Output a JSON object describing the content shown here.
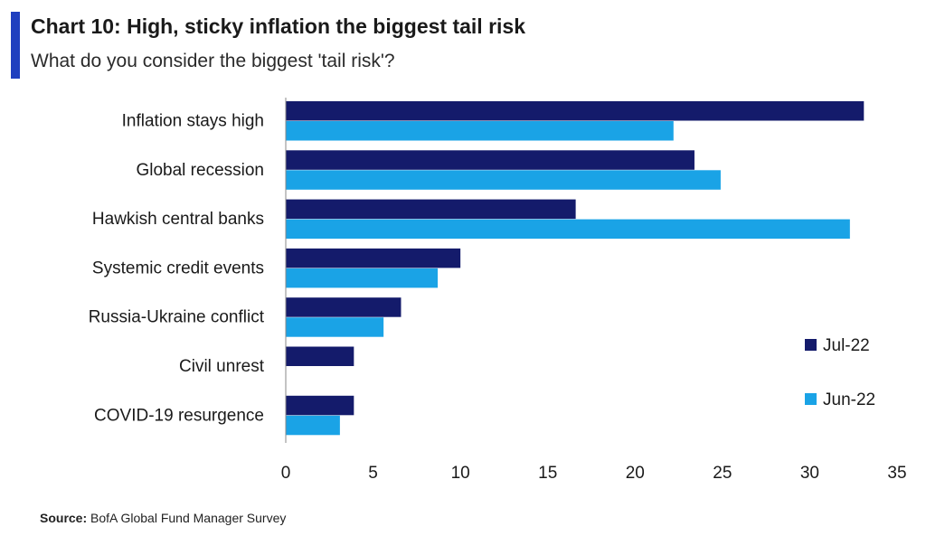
{
  "header": {
    "title": "Chart 10: High, sticky inflation the biggest tail risk",
    "subtitle": "What do you consider the biggest 'tail risk'?"
  },
  "footer": {
    "source_label": "Source:",
    "source_text": "BofA Global Fund Manager Survey"
  },
  "chart_data": {
    "type": "bar",
    "orientation": "horizontal",
    "categories": [
      "Inflation stays high",
      "Global recession",
      "Hawkish central banks",
      "Systemic credit events",
      "Russia-Ukraine conflict",
      "Civil unrest",
      "COVID-19 resurgence"
    ],
    "series": [
      {
        "name": "Jul-22",
        "color": "#141b6b",
        "values": [
          33.1,
          23.4,
          16.6,
          10.0,
          6.6,
          3.9,
          3.9
        ]
      },
      {
        "name": "Jun-22",
        "color": "#1aa3e6",
        "values": [
          22.2,
          24.9,
          32.3,
          8.7,
          5.6,
          null,
          3.1
        ]
      }
    ],
    "xlim": [
      0,
      35
    ],
    "xticks": [
      0,
      5,
      10,
      15,
      20,
      25,
      30,
      35
    ],
    "grid": false,
    "legend_position": "right"
  }
}
